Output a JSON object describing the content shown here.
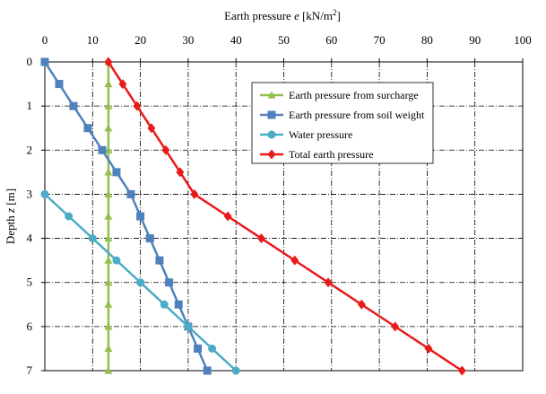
{
  "chart_data": {
    "type": "line",
    "title": "",
    "xlabel": {
      "main": "Earth pressure ",
      "var": "e",
      "unit": " [kN/m",
      "sup": "2",
      "close": "]"
    },
    "ylabel": {
      "main": "Depth ",
      "var": "z",
      "unit": " [m]"
    },
    "xlim": [
      0,
      100
    ],
    "ylim": [
      0,
      7
    ],
    "x_axis_position": "top",
    "y_axis_inverted": true,
    "xticks": [
      "0",
      "10",
      "20",
      "30",
      "40",
      "50",
      "60",
      "70",
      "80",
      "90",
      "100"
    ],
    "yticks": [
      "0",
      "1",
      "2",
      "3",
      "4",
      "5",
      "6",
      "7"
    ],
    "grid": true,
    "grid_style": "dash-dot",
    "legend_position": "upper-right, inside plot area",
    "series": [
      {
        "name": "Earth pressure from surcharge",
        "color": "#92c050",
        "marker": "triangle",
        "points": [
          [
            13.3,
            0
          ],
          [
            13.3,
            0.5
          ],
          [
            13.3,
            1
          ],
          [
            13.3,
            1.5
          ],
          [
            13.3,
            2
          ],
          [
            13.3,
            2.5
          ],
          [
            13.3,
            3
          ],
          [
            13.3,
            3.5
          ],
          [
            13.3,
            4
          ],
          [
            13.3,
            4.5
          ],
          [
            13.3,
            5
          ],
          [
            13.3,
            5.5
          ],
          [
            13.3,
            6
          ],
          [
            13.3,
            6.5
          ],
          [
            13.3,
            7
          ]
        ]
      },
      {
        "name": "Earth pressure from soil weight",
        "color": "#4f81bd",
        "marker": "square",
        "points": [
          [
            0,
            0
          ],
          [
            3,
            0.5
          ],
          [
            6,
            1
          ],
          [
            9,
            1.5
          ],
          [
            12,
            2
          ],
          [
            15,
            2.5
          ],
          [
            18,
            3
          ],
          [
            20,
            3.5
          ],
          [
            22,
            4
          ],
          [
            24,
            4.5
          ],
          [
            26,
            5
          ],
          [
            28,
            5.5
          ],
          [
            30,
            6
          ],
          [
            32,
            6.5
          ],
          [
            34,
            7
          ]
        ]
      },
      {
        "name": "Water pressure",
        "color": "#4bacc6",
        "marker": "circle",
        "points": [
          [
            0,
            3
          ],
          [
            5,
            3.5
          ],
          [
            10,
            4
          ],
          [
            15,
            4.5
          ],
          [
            20,
            5
          ],
          [
            25,
            5.5
          ],
          [
            30,
            6
          ],
          [
            35,
            6.5
          ],
          [
            40,
            7
          ]
        ]
      },
      {
        "name": "Total earth pressure",
        "color": "#e81a1a",
        "marker": "diamond",
        "points": [
          [
            13.3,
            0
          ],
          [
            16.3,
            0.5
          ],
          [
            19.3,
            1
          ],
          [
            22.3,
            1.5
          ],
          [
            25.3,
            2
          ],
          [
            28.3,
            2.5
          ],
          [
            31.3,
            3
          ],
          [
            38.3,
            3.5
          ],
          [
            45.3,
            4
          ],
          [
            52.3,
            4.5
          ],
          [
            59.3,
            5
          ],
          [
            66.3,
            5.5
          ],
          [
            73.3,
            6
          ],
          [
            80.3,
            6.5
          ],
          [
            87.3,
            7
          ]
        ]
      }
    ]
  }
}
